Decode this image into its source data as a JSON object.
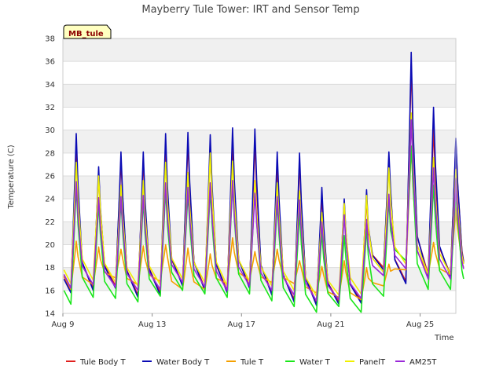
{
  "chart_data": {
    "type": "line",
    "title": "Mayberry Tule Tower: IRT and Sensor Temp",
    "xlabel": "Time",
    "ylabel": "Temperature (C)",
    "site_label": "MB_tule",
    "xlim": [
      0,
      17.6
    ],
    "ylim": [
      14,
      38
    ],
    "y_ticks": [
      14,
      16,
      18,
      20,
      22,
      24,
      26,
      28,
      30,
      32,
      34,
      36,
      38
    ],
    "x_ticks": [
      {
        "value": 0,
        "label": "Aug 9"
      },
      {
        "value": 4,
        "label": "Aug 13"
      },
      {
        "value": 8,
        "label": "Aug 17"
      },
      {
        "value": 12,
        "label": "Aug 21"
      },
      {
        "value": 16,
        "label": "Aug 25"
      }
    ],
    "day_offsets": [
      0,
      0.36,
      0.6,
      0.75
    ],
    "series": [
      {
        "name": "Tule Body T",
        "color": "#e0201e",
        "mins": [
          16.0,
          16.2,
          16.4,
          15.6,
          15.8,
          16.6,
          16.2,
          16.0,
          16.4,
          15.8,
          15.2,
          14.9,
          15.0,
          15.1,
          18.0,
          16.8,
          17.4
        ],
        "maxs": [
          28.3,
          26.3,
          27.5,
          27.5,
          28.1,
          29.0,
          28.3,
          29.0,
          29.0,
          27.0,
          27.3,
          24.3,
          23.0,
          24.1,
          27.5,
          35.8,
          30.2,
          29.0
        ]
      },
      {
        "name": "Water Body T",
        "color": "#0a0ab4",
        "mins": [
          15.8,
          16.0,
          16.2,
          15.4,
          15.6,
          16.4,
          16.0,
          15.8,
          16.2,
          15.6,
          15.0,
          14.7,
          14.8,
          14.9,
          17.8,
          16.6,
          17.2
        ],
        "maxs": [
          29.7,
          26.8,
          28.1,
          28.1,
          29.7,
          29.8,
          29.6,
          30.2,
          30.1,
          28.1,
          28.0,
          25.0,
          24.0,
          24.8,
          28.1,
          36.8,
          32.0,
          29.3
        ]
      },
      {
        "name": "Tule T",
        "color": "#f5a000",
        "mins": [
          16.1,
          16.5,
          17.1,
          16.5,
          16.8,
          16.1,
          16.1,
          16.6,
          16.9,
          16.7,
          16.6,
          15.8,
          15.4,
          15.2,
          16.4,
          17.8,
          17.4
        ],
        "maxs": [
          20.3,
          19.8,
          19.6,
          19.9,
          20.0,
          19.7,
          19.2,
          20.6,
          19.4,
          19.6,
          18.6,
          18.1,
          18.6,
          18.0,
          18.3,
          28.6,
          20.2,
          23.3
        ]
      },
      {
        "name": "Water T",
        "color": "#1ae61a",
        "mins": [
          14.8,
          15.4,
          15.3,
          15.0,
          15.5,
          16.0,
          15.7,
          15.4,
          15.7,
          15.1,
          14.6,
          14.1,
          14.6,
          14.1,
          15.5,
          18.6,
          16.1
        ],
        "maxs": [
          25.1,
          23.6,
          23.9,
          23.9,
          24.8,
          24.5,
          24.8,
          25.4,
          25.0,
          23.7,
          22.8,
          21.1,
          20.8,
          21.5,
          24.0,
          28.6,
          25.2,
          25.3
        ]
      },
      {
        "name": "PanelT",
        "color": "#f0f000",
        "mins": [
          16.6,
          16.9,
          16.7,
          16.4,
          16.5,
          17.0,
          16.7,
          16.4,
          16.8,
          16.4,
          16.0,
          15.5,
          15.6,
          15.7,
          17.6,
          18.3,
          17.4
        ],
        "maxs": [
          27.2,
          26.0,
          25.2,
          25.6,
          27.2,
          26.3,
          28.0,
          27.3,
          25.6,
          25.4,
          24.7,
          22.8,
          23.6,
          24.3,
          26.7,
          31.5,
          27.6,
          26.6
        ]
      },
      {
        "name": "AM25T",
        "color": "#9a28d8",
        "mins": [
          16.2,
          16.5,
          16.3,
          16.0,
          16.1,
          16.7,
          16.3,
          16.0,
          16.4,
          16.0,
          15.6,
          15.1,
          15.2,
          15.3,
          17.3,
          17.9,
          17.0
        ],
        "maxs": [
          25.5,
          24.1,
          24.2,
          24.3,
          25.4,
          25.0,
          25.4,
          25.6,
          24.5,
          24.2,
          23.9,
          22.0,
          22.6,
          22.2,
          24.4,
          30.9,
          26.7,
          25.8
        ]
      }
    ]
  }
}
